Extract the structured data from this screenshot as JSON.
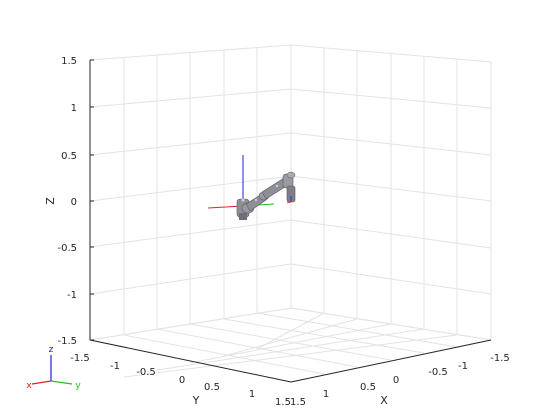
{
  "figure": {
    "axes": {
      "z_ticks": [
        "1.5",
        "1",
        "0.5",
        "0",
        "-0.5",
        "-1",
        "-1.5"
      ],
      "y_ticks": [
        "-1.5",
        "-1",
        "-0.5",
        "0",
        "0.5",
        "1",
        "1.5"
      ],
      "x_ticks": [
        "1.5",
        "1",
        "0.5",
        "0",
        "-0.5",
        "-1",
        "-1.5"
      ],
      "xlabel": "X",
      "ylabel": "Y",
      "zlabel": "Z"
    },
    "triad": {
      "z": "z",
      "y": "y",
      "x": "x"
    },
    "colors": {
      "grid": "#e6e6e6",
      "axis_line": "#262626",
      "robot": "#8e8e96",
      "robot_dark": "#5a5a62",
      "frame_x": "#e02020",
      "frame_y": "#20c020",
      "frame_z": "#2020d0"
    }
  }
}
